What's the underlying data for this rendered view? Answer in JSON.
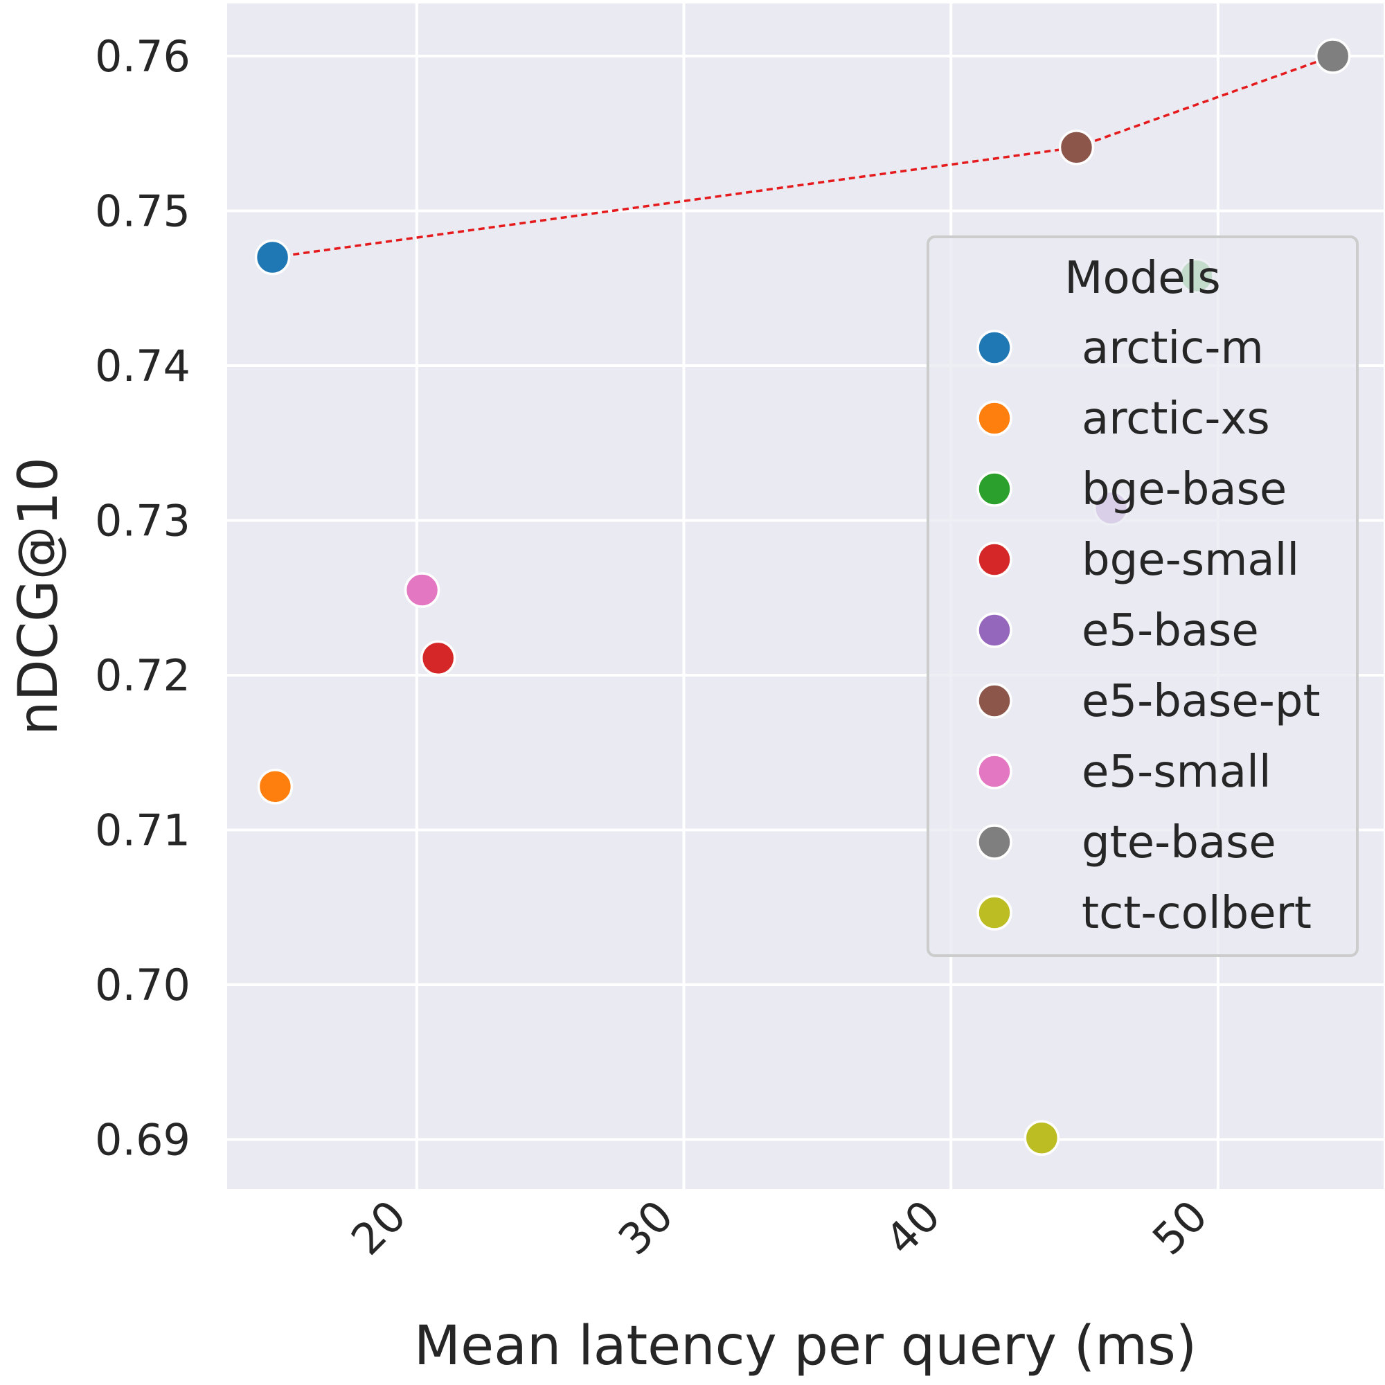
{
  "chart_data": {
    "type": "scatter",
    "title": "",
    "xlabel": "Mean latency per query (ms)",
    "ylabel": "nDCG@10",
    "xlim": [
      12.9,
      56.2
    ],
    "ylim": [
      0.6868,
      0.7634
    ],
    "x_ticks": [
      20,
      30,
      40,
      50
    ],
    "x_tick_labels": [
      "20",
      "30",
      "40",
      "50"
    ],
    "y_ticks": [
      0.69,
      0.7,
      0.71,
      0.72,
      0.73,
      0.74,
      0.75,
      0.76
    ],
    "y_tick_labels": [
      "0.69",
      "0.70",
      "0.71",
      "0.72",
      "0.73",
      "0.74",
      "0.75",
      "0.76"
    ],
    "grid": true,
    "legend": {
      "title": "Models",
      "placement": "right"
    },
    "series": [
      {
        "name": "arctic-m",
        "color": "#1f77b4",
        "x": 14.6,
        "y": 0.747
      },
      {
        "name": "arctic-xs",
        "color": "#ff7f0e",
        "x": 14.7,
        "y": 0.7128
      },
      {
        "name": "bge-base",
        "color": "#2ca02c",
        "x": 49.2,
        "y": 0.7458
      },
      {
        "name": "bge-small",
        "color": "#d62728",
        "x": 20.8,
        "y": 0.7211
      },
      {
        "name": "e5-base",
        "color": "#9467bd",
        "x": 46.0,
        "y": 0.7308
      },
      {
        "name": "e5-base-pt",
        "color": "#8c564b",
        "x": 44.7,
        "y": 0.7541
      },
      {
        "name": "e5-small",
        "color": "#e377c2",
        "x": 20.2,
        "y": 0.7255
      },
      {
        "name": "gte-base",
        "color": "#7f7f7f",
        "x": 54.3,
        "y": 0.76
      },
      {
        "name": "tct-colbert",
        "color": "#bcbd22",
        "x": 43.4,
        "y": 0.6901
      }
    ],
    "frontier": {
      "style": "dashed",
      "color": "#e41a1c",
      "points": [
        [
          14.6,
          0.747
        ],
        [
          44.7,
          0.7541
        ],
        [
          54.3,
          0.76
        ]
      ]
    }
  }
}
